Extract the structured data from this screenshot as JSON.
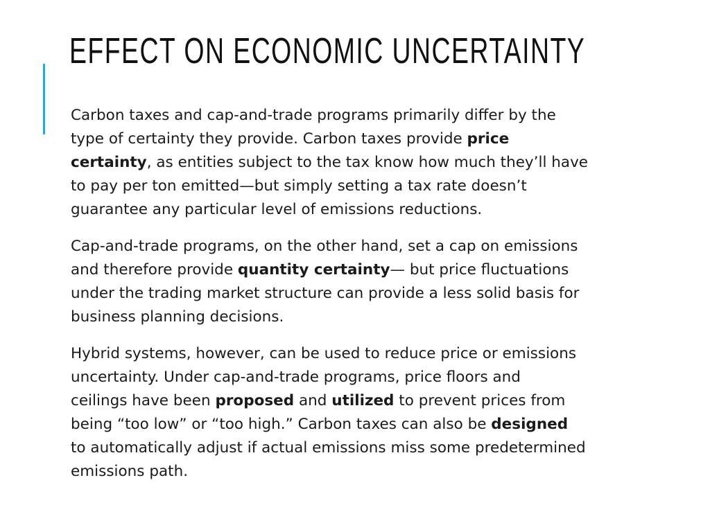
{
  "slide": {
    "title": "EFFECT ON ECONOMIC UNCERTAINTY",
    "accent_color": "#1CADE4",
    "paragraphs": [
      [
        [
          {
            "t": "Carbon taxes and cap-and-trade programs primarily differ by the"
          }
        ],
        [
          {
            "t": "type of certainty they provide. Carbon taxes provide "
          },
          {
            "t": "price",
            "b": true
          }
        ],
        [
          {
            "t": "certainty",
            "b": true
          },
          {
            "t": ", as entities subject to the tax know how much they’ll have"
          }
        ],
        [
          {
            "t": "to pay per ton emitted—but simply setting a tax rate doesn’t"
          }
        ],
        [
          {
            "t": "guarantee any particular level of emissions reductions."
          }
        ]
      ],
      [
        [
          {
            "t": "Cap-and-trade programs, on the other hand, set a cap on emissions"
          }
        ],
        [
          {
            "t": "and therefore provide "
          },
          {
            "t": "quantity certainty",
            "b": true
          },
          {
            "t": "— but price fluctuations"
          }
        ],
        [
          {
            "t": "under the trading market structure can provide a less solid basis for"
          }
        ],
        [
          {
            "t": "business planning decisions."
          }
        ]
      ],
      [
        [
          {
            "t": "Hybrid systems, however, can be used to reduce price or emissions"
          }
        ],
        [
          {
            "t": "uncertainty. Under cap-and-trade programs, price floors and"
          }
        ],
        [
          {
            "t": "ceilings have been "
          },
          {
            "t": "proposed",
            "b": true
          },
          {
            "t": " and "
          },
          {
            "t": "utilized",
            "b": true
          },
          {
            "t": " to prevent prices from"
          }
        ],
        [
          {
            "t": "being “too low” or “too high.” Carbon taxes can also be "
          },
          {
            "t": "designed",
            "b": true
          }
        ],
        [
          {
            "t": "to automatically adjust if actual emissions miss some predetermined"
          }
        ],
        [
          {
            "t": "emissions path."
          }
        ]
      ]
    ]
  }
}
